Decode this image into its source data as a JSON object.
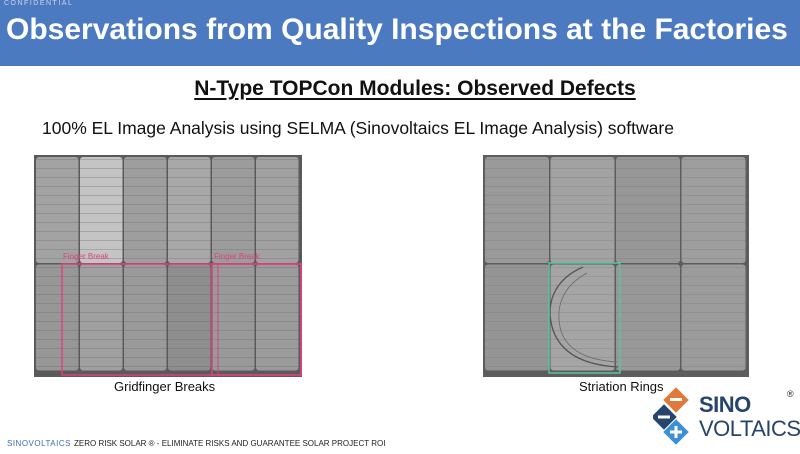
{
  "header": {
    "confidential": "CONFIDENTIAL",
    "title": "Observations from Quality Inspections at the Factories"
  },
  "subtitle": "N-Type TOPCon Modules: Observed Defects",
  "description": "100% EL Image Analysis using SELMA (Sinovoltaics EL Image Analysis) software",
  "left_image": {
    "caption": "Gridfinger Breaks",
    "label_1": "Finger Break",
    "label_2": "Finger Break",
    "annotation_color": "#e0407f"
  },
  "right_image": {
    "caption": "Striation Rings",
    "annotation_color": "#58c4a0"
  },
  "footer": {
    "brand": "SINOVOLTAICS",
    "tagline": "ZERO RISK SOLAR ® -  ELIMINATE RISKS AND GUARANTEE SOLAR PROJECT ROI"
  },
  "logo": {
    "line1": "SINO",
    "line2": "VOLTAICS",
    "registered": "®"
  }
}
